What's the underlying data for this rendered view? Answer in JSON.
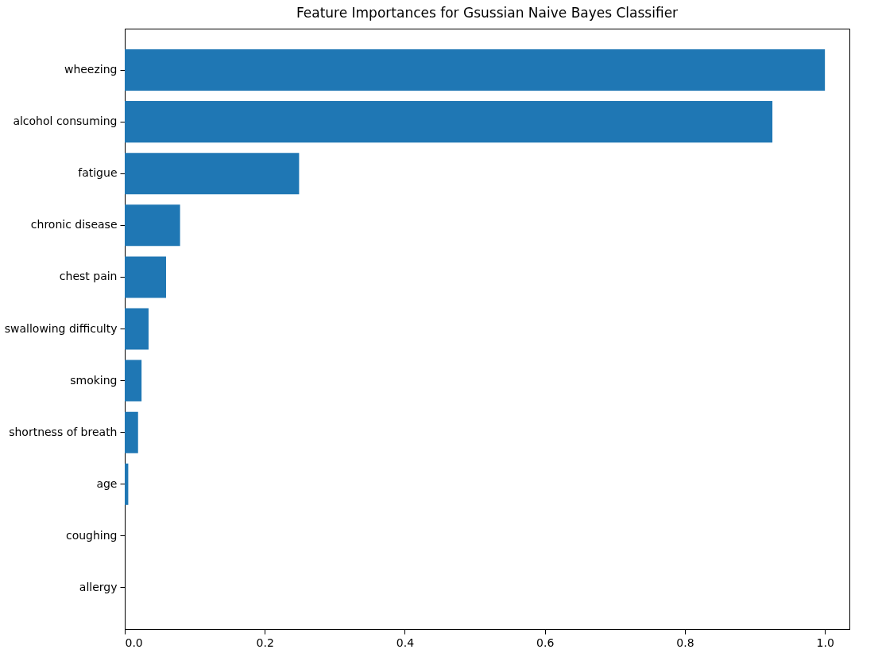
{
  "chart_data": {
    "type": "bar",
    "orientation": "horizontal",
    "title": "Feature Importances for Gsussian Naive Bayes Classifier",
    "categories": [
      "wheezing",
      "alcohol consuming",
      "fatigue",
      "chronic disease",
      "chest pain",
      "swallowing difficulty",
      "smoking",
      "shortness of breath",
      "age",
      "coughing",
      "allergy"
    ],
    "values": [
      1.0,
      0.925,
      0.249,
      0.079,
      0.059,
      0.034,
      0.024,
      0.019,
      0.005,
      0,
      0
    ],
    "color": "#1f77b4",
    "xlim": [
      0,
      1.035
    ],
    "xticks": [
      {
        "value": 0,
        "label": "0.0"
      },
      0.2,
      0.4,
      0.6,
      0.8,
      {
        "value": 1,
        "label": "1.0"
      }
    ],
    "grid": false
  }
}
